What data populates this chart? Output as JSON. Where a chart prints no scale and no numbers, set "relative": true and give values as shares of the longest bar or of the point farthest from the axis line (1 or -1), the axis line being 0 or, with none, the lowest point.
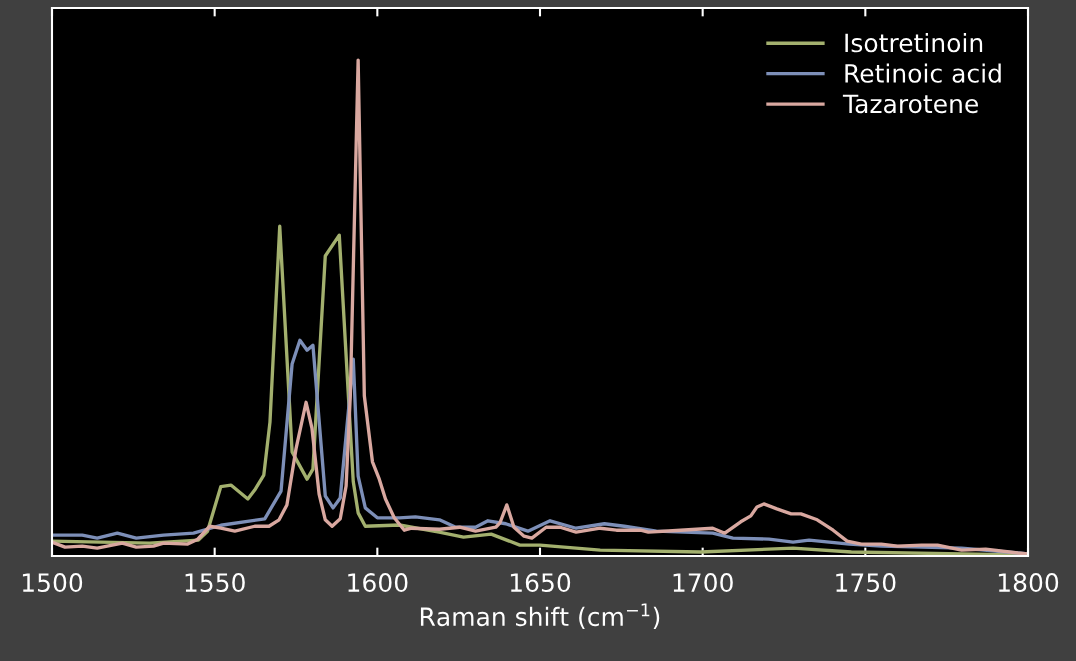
{
  "chart_data": {
    "type": "line",
    "relative": true,
    "xlabel": "Raman shift (cm$^{−1}$)",
    "xlim": [
      1500,
      1800
    ],
    "xticks": [
      1500,
      1550,
      1600,
      1650,
      1700,
      1750,
      1800
    ],
    "tick_labels": "x",
    "grid": false,
    "legend": "top right",
    "series": [
      {
        "name": "Isotretinoin",
        "color": "#a3b06e",
        "x": [
          1500,
          1530,
          1545,
          1547.8,
          1551.9,
          1555,
          1560.2,
          1562.3,
          1565.1,
          1567,
          1570,
          1573.8,
          1578.4,
          1580.2,
          1584,
          1588.3,
          1592.6,
          1594.1,
          1596.3,
          1606.8,
          1619,
          1626.5,
          1635,
          1643.8,
          1650,
          1668.5,
          1699.4,
          1727.8,
          1745.7,
          1800
        ],
        "values": [
          0.03,
          0.026,
          0.032,
          0.05,
          0.14,
          0.143,
          0.115,
          0.133,
          0.163,
          0.27,
          0.665,
          0.21,
          0.155,
          0.175,
          0.605,
          0.647,
          0.15,
          0.087,
          0.06,
          0.0625,
          0.048,
          0.038,
          0.044,
          0.022,
          0.022,
          0.012,
          0.008,
          0.016,
          0.008,
          0.002
        ]
      },
      {
        "name": "Retinoic acid",
        "color": "#7d8fb8",
        "x": [
          1500,
          1509.3,
          1513.9,
          1520.1,
          1525.9,
          1534.3,
          1543.5,
          1551.9,
          1565.4,
          1570.4,
          1573.8,
          1576.2,
          1578.4,
          1580.2,
          1584,
          1586.4,
          1588.6,
          1592.6,
          1594.1,
          1596.3,
          1600,
          1606.8,
          1611.7,
          1619.1,
          1624.1,
          1630.2,
          1634,
          1639.5,
          1646.3,
          1653.1,
          1661.1,
          1669.8,
          1675.9,
          1685.8,
          1703.1,
          1709.3,
          1720.4,
          1727.8,
          1732.7,
          1745.1,
          1754.9,
          1779.6,
          1796.9,
          1800
        ],
        "values": [
          0.042,
          0.042,
          0.036,
          0.046,
          0.036,
          0.042,
          0.046,
          0.062,
          0.075,
          0.131,
          0.387,
          0.435,
          0.415,
          0.425,
          0.121,
          0.097,
          0.117,
          0.397,
          0.161,
          0.097,
          0.077,
          0.077,
          0.079,
          0.073,
          0.058,
          0.058,
          0.071,
          0.065,
          0.05,
          0.071,
          0.056,
          0.065,
          0.06,
          0.05,
          0.046,
          0.036,
          0.034,
          0.028,
          0.032,
          0.024,
          0.02,
          0.016,
          0.006,
          0.004
        ]
      },
      {
        "name": "Tazarotene",
        "color": "#d9a8a0",
        "x": [
          1500,
          1504,
          1509.3,
          1513.9,
          1521.6,
          1525.9,
          1531.2,
          1534.3,
          1541.7,
          1544.8,
          1548.5,
          1551.9,
          1556.2,
          1562.3,
          1566.7,
          1569.8,
          1572.2,
          1575,
          1578.1,
          1579.9,
          1582.1,
          1584,
          1586.1,
          1588.6,
          1590.4,
          1591.7,
          1594.1,
          1596,
          1598.5,
          1600.6,
          1602.5,
          1605.2,
          1608.3,
          1610.5,
          1619.1,
          1625.3,
          1630.2,
          1636.4,
          1637.7,
          1639.8,
          1642,
          1645.1,
          1647.5,
          1651.9,
          1656.2,
          1661.1,
          1668.5,
          1673.5,
          1680.9,
          1683.3,
          1693.2,
          1703.1,
          1706.8,
          1711.7,
          1714.8,
          1716.7,
          1718.8,
          1722.8,
          1727.2,
          1730.2,
          1735.2,
          1740.1,
          1744.4,
          1748.8,
          1754.9,
          1759.9,
          1767.3,
          1772.2,
          1779.6,
          1787,
          1796.9,
          1800
        ],
        "values": [
          0.028,
          0.018,
          0.02,
          0.016,
          0.026,
          0.018,
          0.02,
          0.026,
          0.024,
          0.034,
          0.06,
          0.056,
          0.05,
          0.06,
          0.06,
          0.073,
          0.103,
          0.216,
          0.31,
          0.258,
          0.125,
          0.073,
          0.06,
          0.075,
          0.141,
          0.325,
          1.0,
          0.323,
          0.19,
          0.155,
          0.115,
          0.077,
          0.052,
          0.056,
          0.054,
          0.058,
          0.05,
          0.058,
          0.067,
          0.103,
          0.058,
          0.04,
          0.036,
          0.058,
          0.058,
          0.048,
          0.056,
          0.052,
          0.052,
          0.048,
          0.052,
          0.056,
          0.046,
          0.069,
          0.081,
          0.099,
          0.105,
          0.095,
          0.085,
          0.085,
          0.073,
          0.052,
          0.03,
          0.024,
          0.024,
          0.02,
          0.022,
          0.022,
          0.012,
          0.014,
          0.006,
          0.004
        ]
      }
    ]
  }
}
